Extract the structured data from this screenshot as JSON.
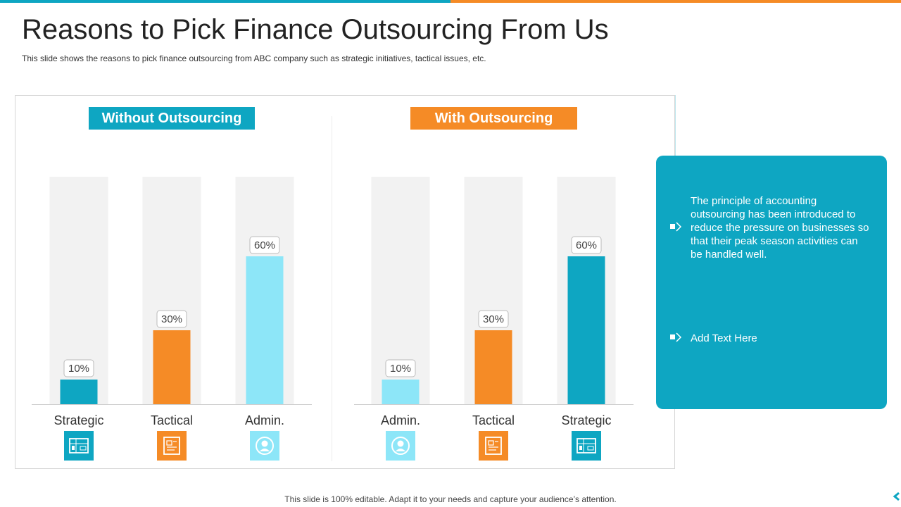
{
  "slide": {
    "title": "Reasons to Pick Finance Outsourcing From Us",
    "subtitle": "This slide shows the reasons to pick finance outsourcing from ABC company such as strategic initiatives, tactical issues, etc.",
    "footer": "This slide is 100% editable. Adapt it to your needs and capture your audience’s attention."
  },
  "panels": {
    "left_title": "Without Outsourcing",
    "right_title": "With Outsourcing"
  },
  "side_card": {
    "points": [
      "The principle of accounting outsourcing has been introduced to reduce the pressure on businesses so that their peak season activities can be handled well.",
      "Add Text Here"
    ]
  },
  "colors": {
    "teal": "#0ea6c2",
    "orange": "#f58b26",
    "light_blue": "#8de6f8",
    "bar_track": "#f2f2f2"
  },
  "chart_data": [
    {
      "type": "bar",
      "title": "Without Outsourcing",
      "categories": [
        "Strategic",
        "Tactical",
        "Admin."
      ],
      "values": [
        10,
        30,
        60
      ],
      "value_labels": [
        "10%",
        "30%",
        "60%"
      ],
      "bar_colors": [
        "#0ea6c2",
        "#f58b26",
        "#8de6f8"
      ],
      "icons": [
        "blueprint-icon",
        "document-icon",
        "user-icon"
      ],
      "ylim": [
        0,
        100
      ],
      "grid": false
    },
    {
      "type": "bar",
      "title": "With Outsourcing",
      "categories": [
        "Admin.",
        "Tactical",
        "Strategic"
      ],
      "values": [
        10,
        30,
        60
      ],
      "value_labels": [
        "10%",
        "30%",
        "60%"
      ],
      "bar_colors": [
        "#8de6f8",
        "#f58b26",
        "#0ea6c2"
      ],
      "icons": [
        "user-icon",
        "document-icon",
        "blueprint-icon"
      ],
      "ylim": [
        0,
        100
      ],
      "grid": false
    }
  ]
}
